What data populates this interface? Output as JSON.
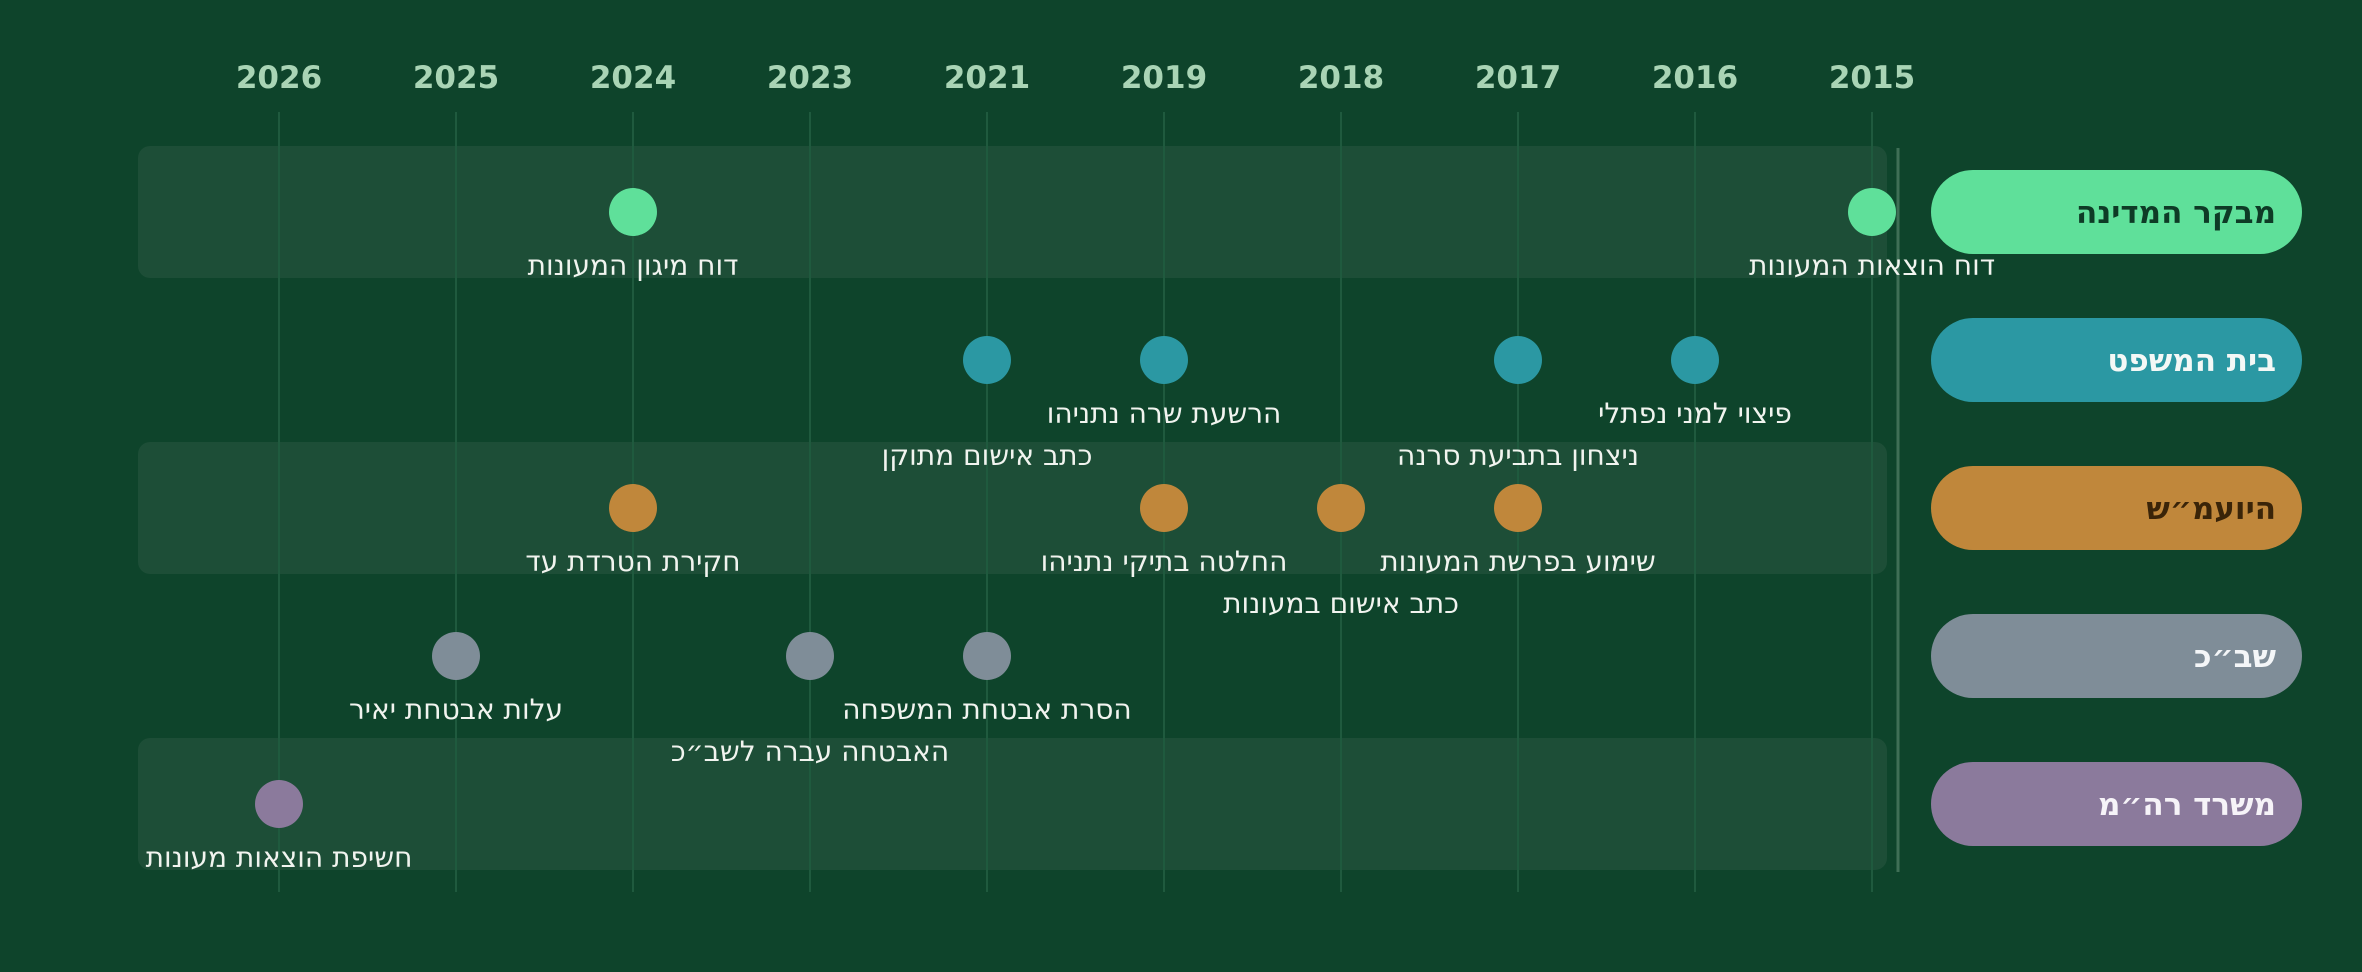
{
  "chart_data": {
    "type": "scatter",
    "title": "",
    "xlabel": "",
    "ylabel": "",
    "x_ticks": [
      "2015",
      "2016",
      "2017",
      "2018",
      "2019",
      "2021",
      "2023",
      "2024",
      "2025",
      "2026"
    ],
    "grid": true,
    "lanes": [
      {
        "name": "מבקר המדינה",
        "color": "#5fe09a",
        "text_color": "#0e3b26"
      },
      {
        "name": "בית המשפט",
        "color": "#2b98a3",
        "text_color": "#f4f8f6"
      },
      {
        "name": "היועמ״ש",
        "color": "#c0873b",
        "text_color": "#3a2408"
      },
      {
        "name": "שב״כ",
        "color": "#7f8d98",
        "text_color": "#f4f6f8"
      },
      {
        "name": "משרד רה״מ",
        "color": "#8b7a9c",
        "text_color": "#f6f3f8"
      }
    ],
    "events": [
      {
        "lane": 0,
        "year": "2015",
        "label": "דוח הוצאות המעונות"
      },
      {
        "lane": 0,
        "year": "2024",
        "label": "דוח מיגון המעונות"
      },
      {
        "lane": 1,
        "year": "2016",
        "label": "פיצוי למני נפתלי"
      },
      {
        "lane": 1,
        "year": "2017",
        "label": "ניצחון בתביעת סרנה"
      },
      {
        "lane": 1,
        "year": "2019",
        "label": "הרשעת שרה נתניהו"
      },
      {
        "lane": 1,
        "year": "2021",
        "label": "כתב אישום מתוקן"
      },
      {
        "lane": 2,
        "year": "2017",
        "label": "שימוע בפרשת המעונות"
      },
      {
        "lane": 2,
        "year": "2018",
        "label": "כתב אישום במעונות"
      },
      {
        "lane": 2,
        "year": "2019",
        "label": "החלטה בתיקי נתניהו"
      },
      {
        "lane": 2,
        "year": "2024",
        "label": "חקירת הטרדת עד"
      },
      {
        "lane": 3,
        "year": "2021",
        "label": "הסרת אבטחת המשפחה"
      },
      {
        "lane": 3,
        "year": "2023",
        "label": "האבטחה עברה לשב״כ"
      },
      {
        "lane": 3,
        "year": "2025",
        "label": "עלות אבטחת יאיר"
      },
      {
        "lane": 4,
        "year": "2026",
        "label": "חשיפת הוצאות מעונות"
      }
    ]
  }
}
